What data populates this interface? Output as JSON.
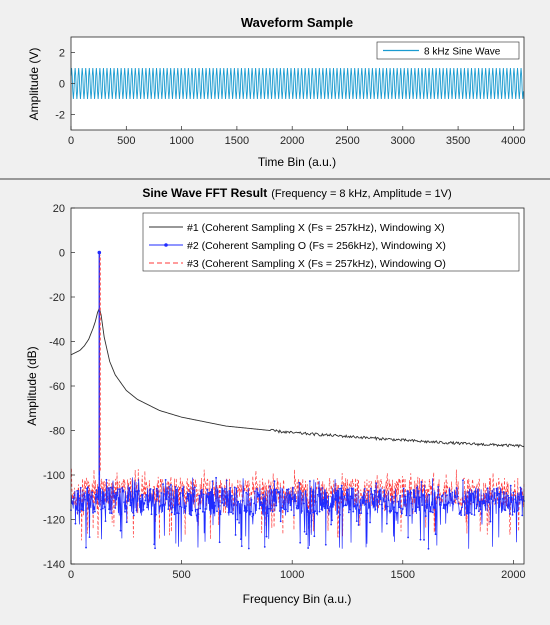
{
  "chart_data": [
    {
      "type": "line",
      "title": "Waveform Sample",
      "subtitle": "",
      "xlabel": "Time Bin (a.u.)",
      "ylabel": "Amplitude (V)",
      "xlim": [
        0,
        4096
      ],
      "ylim": [
        -3,
        3
      ],
      "xticks": [
        0,
        500,
        1000,
        1500,
        2000,
        2500,
        3000,
        3500,
        4000
      ],
      "yticks": [
        2,
        0,
        -2
      ],
      "grid": false,
      "legend_position": "top-right",
      "series": [
        {
          "name": "8 kHz Sine Wave",
          "color": "#1a9bd0",
          "signal": {
            "kind": "sine",
            "amplitude": 1,
            "cycles": 128
          }
        }
      ]
    },
    {
      "type": "line",
      "title": "Sine Wave FFT Result",
      "subtitle": "(Frequency = 8 kHz, Amplitude = 1V)",
      "xlabel": "Frequency Bin (a.u.)",
      "ylabel": "Amplitude (dB)",
      "xlim": [
        0,
        2048
      ],
      "ylim": [
        -140,
        20
      ],
      "xticks": [
        0,
        500,
        1000,
        1500,
        2000
      ],
      "yticks": [
        20,
        0,
        -20,
        -40,
        -60,
        -80,
        -100,
        -120,
        -140
      ],
      "grid": false,
      "legend_position": "top-right",
      "series": [
        {
          "name": "#1 (Coherent Sampling X (Fs = 257kHz), Windowing X)",
          "color": "#303030",
          "line_style": "solid",
          "marker": "none",
          "peak_bin": 128,
          "peak_db": -25,
          "points": [
            [
              0,
              -46
            ],
            [
              20,
              -45
            ],
            [
              40,
              -44
            ],
            [
              60,
              -42
            ],
            [
              80,
              -39
            ],
            [
              100,
              -34
            ],
            [
              110,
              -31
            ],
            [
              120,
              -27
            ],
            [
              128,
              -25
            ],
            [
              136,
              -28
            ],
            [
              150,
              -38
            ],
            [
              175,
              -49
            ],
            [
              200,
              -55
            ],
            [
              250,
              -62
            ],
            [
              300,
              -66
            ],
            [
              400,
              -71
            ],
            [
              500,
              -74
            ],
            [
              700,
              -78
            ],
            [
              1000,
              -81
            ],
            [
              1300,
              -83
            ],
            [
              1600,
              -85
            ],
            [
              1800,
              -86
            ],
            [
              2048,
              -87
            ]
          ]
        },
        {
          "name": "#2 (Coherent Sampling O (Fs = 256kHz), Windowing X)",
          "color": "#1f2bff",
          "line_style": "solid",
          "marker": "dot",
          "peak_bin": 128,
          "peak_db": 0,
          "noise_floor_db": [
            -125,
            -101
          ]
        },
        {
          "name": "#3 (Coherent Sampling X (Fs = 257kHz), Windowing O)",
          "color": "#ff3a3a",
          "line_style": "dashed",
          "marker": "none",
          "peak_bin": 128,
          "peak_db": -1,
          "noise_floor_db": [
            -121,
            -97
          ]
        }
      ]
    }
  ]
}
